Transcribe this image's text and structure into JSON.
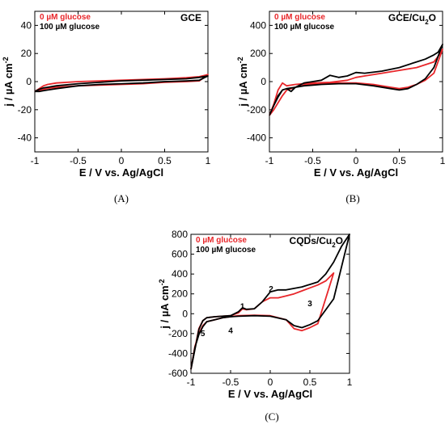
{
  "colors": {
    "zero_glucose": "#e8262a",
    "hundred_glucose": "#000000"
  },
  "chart_data": [
    {
      "type": "line",
      "panel_label": "(A)",
      "title_main": "GCE",
      "title_sub": "",
      "title_tail": "",
      "xlabel": "E / V vs. Ag/AgCl",
      "ylabel": "j / µA cm",
      "ylabel_sup": "-2",
      "xlim": [
        -1,
        1
      ],
      "ylim": [
        -50,
        50
      ],
      "xticks": [
        -1,
        -0.5,
        0,
        0.5,
        1
      ],
      "xtick_labels": [
        "-1",
        "-0.5",
        "0",
        "0.5",
        "1"
      ],
      "yticks": [
        -40,
        -20,
        0,
        20,
        40
      ],
      "ytick_labels": [
        "-40",
        "-20",
        "0",
        "20",
        "40"
      ],
      "legend": [
        "0 µM glucose",
        "100 µM glucose"
      ],
      "annotations": [],
      "series": [
        {
          "name": "0 µM glucose",
          "color": "#e8262a",
          "x": [
            -1,
            -0.95,
            -0.9,
            -0.85,
            -0.75,
            -0.5,
            -0.25,
            0,
            0.25,
            0.5,
            0.75,
            0.9,
            1,
            0.9,
            0.75,
            0.5,
            0.25,
            0,
            -0.25,
            -0.5,
            -0.75,
            -0.85,
            -0.9,
            -0.95,
            -1
          ],
          "y": [
            -7,
            -5,
            -3,
            -2,
            -1,
            0,
            0.5,
            1,
            1.5,
            2,
            2.8,
            3.5,
            5,
            0.5,
            0,
            -0.5,
            -1.5,
            -2,
            -2.5,
            -3,
            -4,
            -4.8,
            -5.5,
            -6.5,
            -7
          ]
        },
        {
          "name": "100 µM glucose",
          "color": "#000000",
          "x": [
            -1,
            -0.95,
            -0.9,
            -0.85,
            -0.75,
            -0.5,
            -0.25,
            0,
            0.25,
            0.5,
            0.75,
            0.9,
            1,
            0.9,
            0.75,
            0.5,
            0.25,
            0,
            -0.25,
            -0.5,
            -0.75,
            -0.85,
            -0.9,
            -0.95,
            -1
          ],
          "y": [
            -7,
            -5.5,
            -4.5,
            -4,
            -3,
            -1.5,
            -0.5,
            0.5,
            1,
            1.5,
            2,
            3,
            4,
            1,
            0.5,
            0,
            -1,
            -1.5,
            -2,
            -3,
            -5,
            -6,
            -6.5,
            -7,
            -7
          ]
        }
      ]
    },
    {
      "type": "line",
      "panel_label": "(B)",
      "title_main": "GCE/Cu",
      "title_sub": "2",
      "title_tail": "O",
      "xlabel": "E / V vs. Ag/AgCl",
      "ylabel": "j / µA cm",
      "ylabel_sup": "-2",
      "xlim": [
        -1,
        1
      ],
      "ylim": [
        -500,
        500
      ],
      "xticks": [
        -1,
        -0.5,
        0,
        0.5,
        1
      ],
      "xtick_labels": [
        "-1",
        "-0.5",
        "0",
        "0.5",
        "1"
      ],
      "yticks": [
        -400,
        -200,
        0,
        200,
        400
      ],
      "ytick_labels": [
        "-400",
        "-200",
        "0",
        "200",
        "400"
      ],
      "legend": [
        "0 µM glucose",
        "100 µM glucose"
      ],
      "annotations": [],
      "series": [
        {
          "name": "0 µM glucose",
          "color": "#e8262a",
          "x": [
            -1,
            -0.95,
            -0.9,
            -0.85,
            -0.8,
            -0.7,
            -0.5,
            -0.3,
            -0.1,
            0,
            0.1,
            0.3,
            0.5,
            0.7,
            0.8,
            0.9,
            0.95,
            1,
            0.9,
            0.8,
            0.7,
            0.6,
            0.5,
            0.4,
            0.2,
            0,
            -0.2,
            -0.4,
            -0.6,
            -0.7,
            -0.8,
            -0.85,
            -0.9,
            -0.95,
            -1
          ],
          "y": [
            -240,
            -160,
            -60,
            -10,
            -30,
            -20,
            -10,
            -5,
            10,
            30,
            40,
            60,
            80,
            100,
            120,
            140,
            180,
            230,
            60,
            10,
            -20,
            -40,
            -50,
            -40,
            -20,
            -10,
            -10,
            -15,
            -25,
            -40,
            -60,
            -100,
            -150,
            -200,
            -240
          ]
        },
        {
          "name": "100 µM glucose",
          "color": "#000000",
          "x": [
            -1,
            -0.95,
            -0.9,
            -0.85,
            -0.8,
            -0.75,
            -0.7,
            -0.6,
            -0.5,
            -0.4,
            -0.3,
            -0.2,
            -0.1,
            0,
            0.1,
            0.3,
            0.5,
            0.7,
            0.8,
            0.9,
            0.95,
            1,
            0.9,
            0.8,
            0.7,
            0.6,
            0.5,
            0.4,
            0.2,
            0,
            -0.2,
            -0.4,
            -0.6,
            -0.7,
            -0.8,
            -0.85,
            -0.9,
            -0.95,
            -1
          ],
          "y": [
            -240,
            -170,
            -110,
            -60,
            -50,
            -70,
            -40,
            -10,
            0,
            10,
            45,
            30,
            40,
            65,
            60,
            75,
            100,
            140,
            160,
            190,
            210,
            265,
            100,
            20,
            -20,
            -50,
            -60,
            -50,
            -30,
            -15,
            -15,
            -20,
            -30,
            -40,
            -50,
            -60,
            -100,
            -170,
            -240
          ]
        }
      ]
    },
    {
      "type": "line",
      "panel_label": "(C)",
      "title_main": "CQDs/Cu",
      "title_sub": "2",
      "title_tail": "O",
      "xlabel": "E / V vs. Ag/AgCl",
      "ylabel": "j / µA cm",
      "ylabel_sup": "-2",
      "xlim": [
        -1,
        1
      ],
      "ylim": [
        -600,
        800
      ],
      "xticks": [
        -1,
        -0.5,
        0,
        0.5,
        1
      ],
      "xtick_labels": [
        "-1",
        "-0.5",
        "0",
        "0.5",
        "1"
      ],
      "yticks": [
        -600,
        -400,
        -200,
        0,
        200,
        400,
        600,
        800
      ],
      "ytick_labels": [
        "-600",
        "-400",
        "-200",
        "0",
        "200",
        "400",
        "600",
        "800"
      ],
      "legend": [
        "0 µM glucose",
        "100 µM glucose"
      ],
      "annotations": [
        {
          "text": "1",
          "x": -0.35,
          "y": 80
        },
        {
          "text": "2",
          "x": 0.01,
          "y": 255
        },
        {
          "text": "3",
          "x": 0.5,
          "y": 110
        },
        {
          "text": "4",
          "x": -0.5,
          "y": -165
        },
        {
          "text": "5",
          "x": -0.85,
          "y": -195
        }
      ],
      "series": [
        {
          "name": "0 µM glucose",
          "color": "#e8262a",
          "x": [
            -1,
            -0.95,
            -0.9,
            -0.85,
            -0.8,
            -0.7,
            -0.5,
            -0.4,
            -0.35,
            -0.3,
            -0.2,
            -0.1,
            0,
            0.1,
            0.2,
            0.3,
            0.4,
            0.5,
            0.6,
            0.7,
            0.8,
            0.6,
            0.5,
            0.4,
            0.3,
            0.2,
            0,
            -0.2,
            -0.4,
            -0.5,
            -0.6,
            -0.7,
            -0.8,
            -0.85,
            -0.9,
            -0.95,
            -1
          ],
          "y": [
            -560,
            -350,
            -150,
            -70,
            -40,
            -30,
            -20,
            10,
            50,
            40,
            50,
            120,
            160,
            160,
            180,
            200,
            230,
            260,
            290,
            330,
            410,
            -100,
            -140,
            -170,
            -150,
            -60,
            -20,
            -15,
            -20,
            -30,
            -40,
            -60,
            -80,
            -120,
            -200,
            -330,
            -560
          ]
        },
        {
          "name": "100 µM glucose",
          "color": "#000000",
          "x": [
            -1,
            -0.95,
            -0.9,
            -0.85,
            -0.8,
            -0.7,
            -0.5,
            -0.4,
            -0.35,
            -0.3,
            -0.2,
            -0.1,
            0,
            0.1,
            0.2,
            0.4,
            0.6,
            0.7,
            0.8,
            0.9,
            1,
            0.8,
            0.6,
            0.5,
            0.4,
            0.3,
            0.2,
            0,
            -0.2,
            -0.4,
            -0.5,
            -0.6,
            -0.7,
            -0.8,
            -0.85,
            -0.9,
            -0.95,
            -1
          ],
          "y": [
            -560,
            -360,
            -160,
            -70,
            -40,
            -30,
            -20,
            20,
            60,
            45,
            50,
            120,
            220,
            240,
            240,
            270,
            320,
            400,
            520,
            680,
            800,
            150,
            -70,
            -110,
            -140,
            -120,
            -60,
            -25,
            -20,
            -25,
            -30,
            -40,
            -60,
            -80,
            -130,
            -210,
            -340,
            -560
          ]
        }
      ]
    }
  ]
}
